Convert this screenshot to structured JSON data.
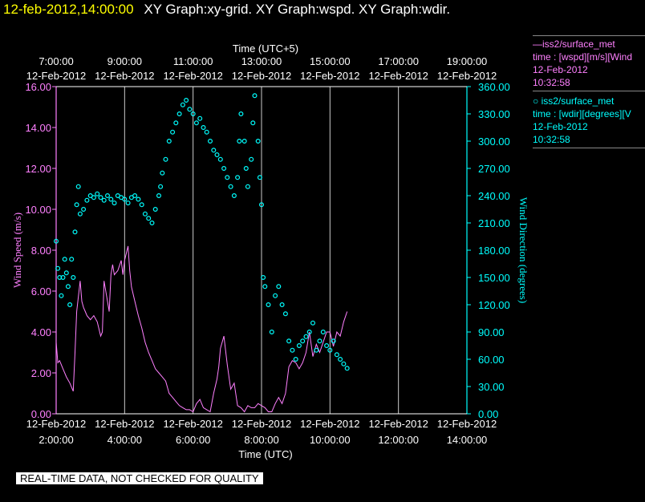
{
  "header": {
    "timestamp": "12-feb-2012,14:00:00",
    "title": "XY Graph:xy-grid.  XY Graph:wspd.  XY Graph:wdir."
  },
  "legend": [
    {
      "line1": "—iss2/surface_met",
      "line2": "time : [wspd][m/s][Wind",
      "line3": "12-Feb-2012",
      "line4": "10:32:58",
      "color": "#ff80ff"
    },
    {
      "line1": "○  iss2/surface_met",
      "line2": "time : [wdir][degrees][V",
      "line3": "12-Feb-2012",
      "line4": "10:32:58",
      "color": "#00ffff"
    }
  ],
  "disclaimer": "REAL-TIME DATA, NOT CHECKED FOR QUALITY",
  "chart_data": {
    "type": "line",
    "title": "",
    "x_top_label": "Time (UTC+5)",
    "x_bottom_label": "Time (UTC)",
    "x_top_ticks": [
      "7:00:00",
      "9:00:00",
      "11:00:00",
      "13:00:00",
      "15:00:00",
      "17:00:00",
      "19:00:00"
    ],
    "x_bottom_ticks": [
      "2:00:00",
      "4:00:00",
      "6:00:00",
      "8:00:00",
      "10:00:00",
      "12:00:00",
      "14:00:00"
    ],
    "x_tick_date": "12-Feb-2012",
    "xlim_utc_hours": [
      2,
      14
    ],
    "grid_x": true,
    "y_left": {
      "label": "Wind Speed (m/s)",
      "lim": [
        0,
        16
      ],
      "ticks": [
        "0.00",
        "2.00",
        "4.00",
        "6.00",
        "8.00",
        "10.00",
        "12.00",
        "14.00",
        "16.00"
      ],
      "color": "#ff80ff"
    },
    "y_right": {
      "label": "Wind Direction (degrees)",
      "lim": [
        0,
        360
      ],
      "ticks": [
        "0.00",
        "30.00",
        "60.00",
        "90.00",
        "120.00",
        "150.00",
        "180.00",
        "210.00",
        "240.00",
        "270.00",
        "300.00",
        "330.00",
        "360.00"
      ],
      "color": "#00ffff"
    },
    "series": [
      {
        "name": "iss2/surface_met time : [wspd][m/s][Wind",
        "axis": "left",
        "style": "line",
        "color": "#ff80ff",
        "x": [
          2.0,
          2.05,
          2.1,
          2.2,
          2.3,
          2.4,
          2.5,
          2.55,
          2.6,
          2.7,
          2.75,
          2.8,
          2.85,
          2.9,
          3.0,
          3.1,
          3.2,
          3.3,
          3.35,
          3.4,
          3.5,
          3.55,
          3.6,
          3.65,
          3.7,
          3.8,
          3.9,
          3.95,
          4.0,
          4.1,
          4.15,
          4.2,
          4.3,
          4.4,
          4.5,
          4.6,
          4.7,
          4.8,
          4.9,
          5.0,
          5.1,
          5.2,
          5.3,
          5.4,
          5.5,
          5.6,
          5.7,
          5.8,
          5.9,
          6.0,
          6.1,
          6.2,
          6.3,
          6.4,
          6.5,
          6.6,
          6.7,
          6.75,
          6.8,
          6.9,
          7.0,
          7.1,
          7.2,
          7.3,
          7.4,
          7.5,
          7.6,
          7.7,
          7.8,
          7.9,
          8.0,
          8.1,
          8.2,
          8.3,
          8.4,
          8.5,
          8.6,
          8.7,
          8.8,
          8.9,
          9.0,
          9.1,
          9.2,
          9.3,
          9.4,
          9.5,
          9.6,
          9.7,
          9.8,
          9.9,
          10.0,
          10.1,
          10.2,
          10.3,
          10.4,
          10.5
        ],
        "y": [
          3.5,
          2.5,
          2.6,
          2.2,
          1.8,
          1.5,
          1.1,
          3.0,
          5.0,
          6.5,
          5.5,
          5.2,
          5.0,
          4.8,
          4.6,
          4.8,
          4.5,
          3.8,
          4.0,
          6.5,
          5.5,
          5.0,
          6.8,
          7.3,
          6.8,
          7.0,
          7.5,
          6.8,
          7.5,
          8.2,
          7.0,
          6.2,
          5.5,
          4.8,
          4.2,
          3.5,
          3.0,
          2.6,
          2.2,
          2.0,
          1.8,
          1.6,
          1.0,
          0.8,
          0.6,
          0.4,
          0.3,
          0.2,
          0.2,
          0.1,
          0.5,
          0.7,
          0.3,
          0.2,
          0.1,
          1.0,
          1.7,
          2.3,
          3.2,
          3.8,
          2.4,
          1.2,
          1.5,
          0.4,
          0.3,
          0.1,
          0.4,
          0.3,
          0.3,
          0.5,
          0.4,
          0.3,
          0.1,
          0.1,
          0.5,
          0.8,
          0.5,
          1.0,
          2.3,
          2.6,
          2.5,
          2.2,
          2.5,
          3.0,
          4.0,
          2.8,
          3.4,
          3.0,
          3.5,
          4.0,
          4.0,
          3.3,
          4.0,
          3.8,
          4.5,
          5.0
        ]
      },
      {
        "name": "iss2/surface_met time : [wdir][degrees][V",
        "axis": "right",
        "style": "scatter",
        "color": "#00ffff",
        "x": [
          2.0,
          2.05,
          2.1,
          2.15,
          2.2,
          2.25,
          2.3,
          2.35,
          2.4,
          2.45,
          2.5,
          2.55,
          2.6,
          2.65,
          2.7,
          2.8,
          2.9,
          3.0,
          3.1,
          3.2,
          3.3,
          3.4,
          3.5,
          3.6,
          3.7,
          3.8,
          3.9,
          4.0,
          4.1,
          4.2,
          4.3,
          4.4,
          4.5,
          4.6,
          4.7,
          4.8,
          4.9,
          5.0,
          5.05,
          5.1,
          5.2,
          5.3,
          5.4,
          5.5,
          5.6,
          5.7,
          5.8,
          5.9,
          6.0,
          6.1,
          6.2,
          6.3,
          6.4,
          6.5,
          6.6,
          6.7,
          6.8,
          6.9,
          7.0,
          7.1,
          7.2,
          7.3,
          7.35,
          7.4,
          7.5,
          7.55,
          7.6,
          7.7,
          7.75,
          7.8,
          7.9,
          7.95,
          8.0,
          8.05,
          8.1,
          8.2,
          8.3,
          8.4,
          8.5,
          8.6,
          8.7,
          8.8,
          8.9,
          9.0,
          9.1,
          9.2,
          9.3,
          9.4,
          9.5,
          9.6,
          9.7,
          9.8,
          9.9,
          10.0,
          10.1,
          10.2,
          10.3,
          10.4,
          10.5
        ],
        "y": [
          190,
          160,
          150,
          130,
          150,
          170,
          155,
          140,
          120,
          170,
          150,
          200,
          230,
          250,
          220,
          225,
          235,
          240,
          238,
          242,
          238,
          235,
          240,
          236,
          232,
          240,
          238,
          236,
          232,
          238,
          240,
          236,
          230,
          220,
          215,
          210,
          225,
          240,
          250,
          265,
          280,
          300,
          310,
          320,
          330,
          340,
          345,
          335,
          330,
          320,
          325,
          315,
          310,
          300,
          290,
          285,
          280,
          270,
          260,
          250,
          240,
          260,
          300,
          330,
          300,
          270,
          250,
          280,
          320,
          350,
          300,
          260,
          230,
          150,
          140,
          120,
          90,
          130,
          140,
          120,
          110,
          80,
          70,
          60,
          75,
          80,
          85,
          90,
          100,
          70,
          80,
          90,
          75,
          70,
          80,
          65,
          60,
          55,
          50
        ]
      }
    ]
  }
}
